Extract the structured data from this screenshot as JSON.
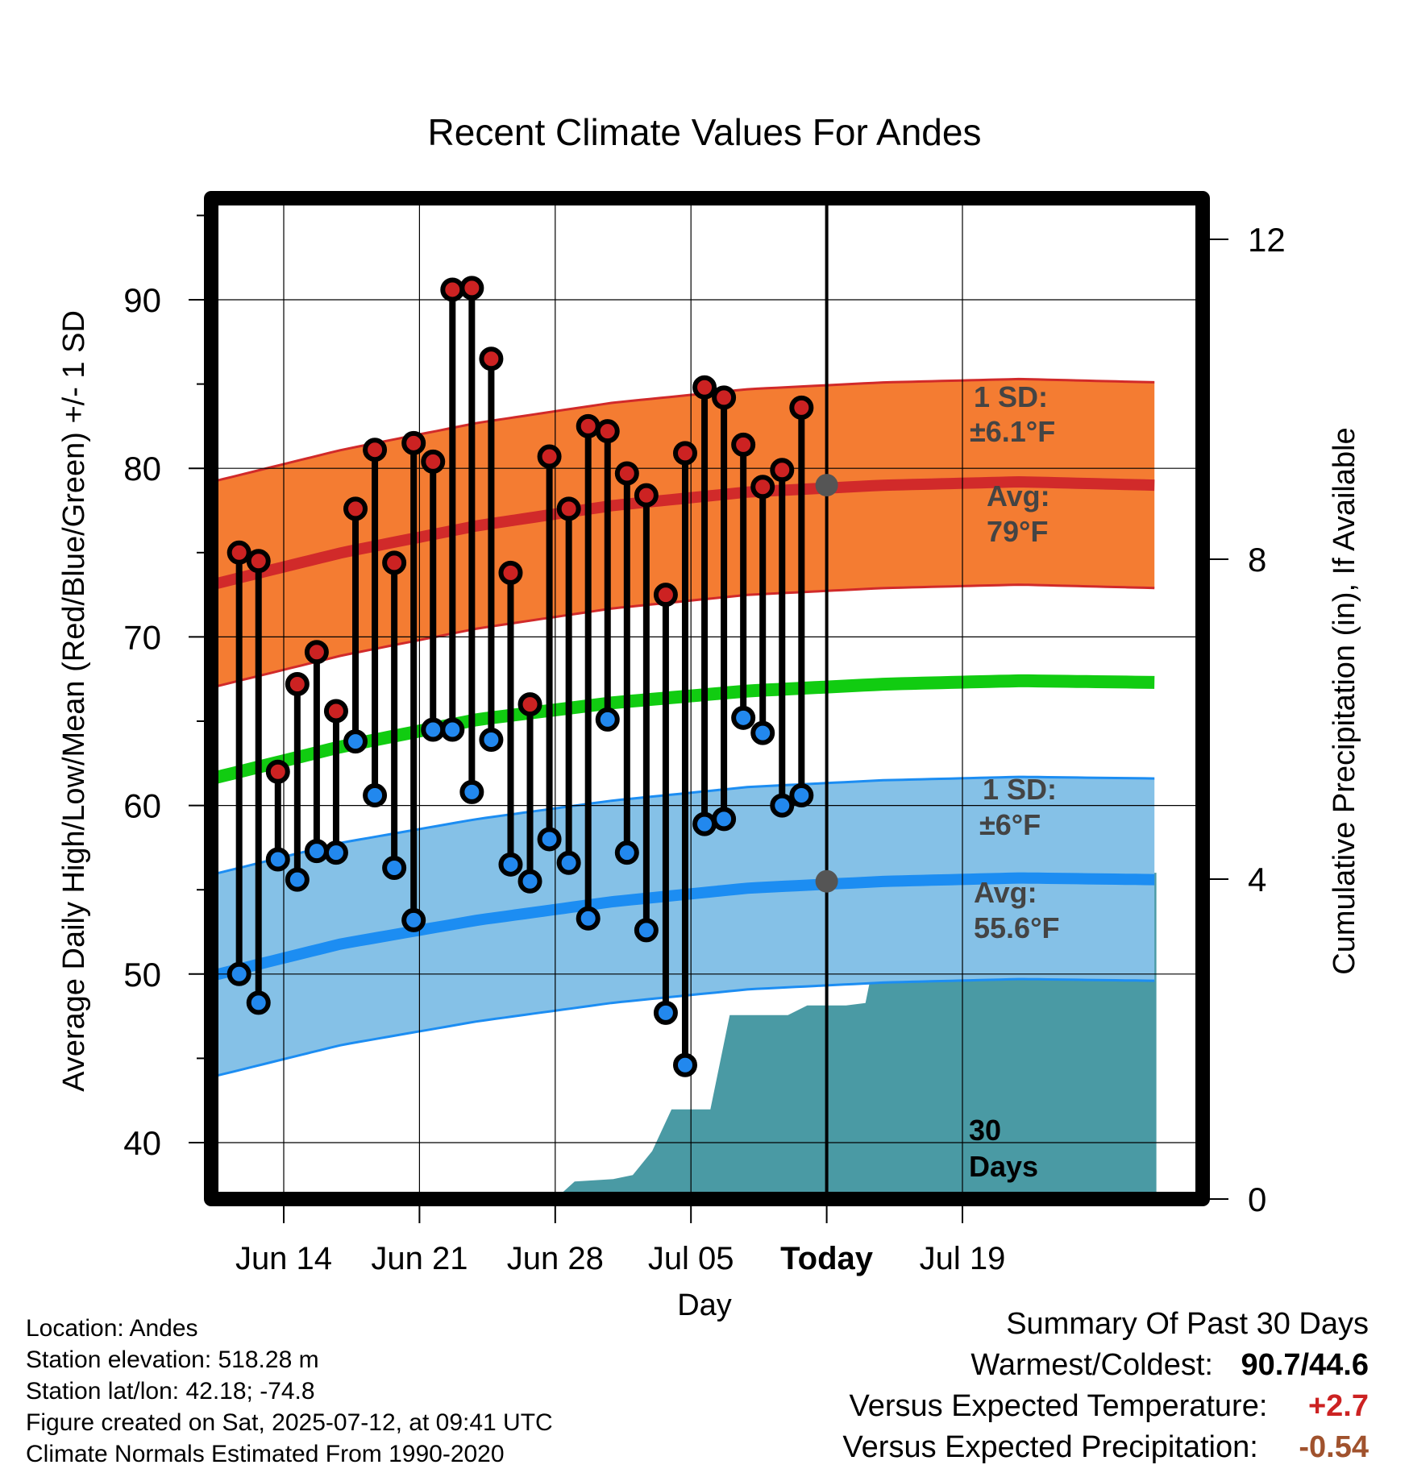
{
  "chart_data": {
    "type": "line",
    "title": "Recent Climate Values For Andes",
    "xlabel": "Day",
    "ylabel": "Average Daily High/Low/Mean (Red/Blue/Green) +/- 1 SD",
    "y2label": "Cumulative Precipitation (in), If Available",
    "ylim": [
      36.5,
      96
    ],
    "y2lim": [
      0,
      20
    ],
    "y_ticks": [
      40,
      50,
      60,
      70,
      80,
      90
    ],
    "y2_ticks": [
      0,
      4,
      8,
      12
    ],
    "xlim": [
      -10.5,
      28.5
    ],
    "x_ticks": [
      {
        "day": 0,
        "label": "Jun 14"
      },
      {
        "day": 7,
        "label": "Jun 21"
      },
      {
        "day": 14,
        "label": "Jun 28"
      },
      {
        "day": 21,
        "label": "Jul 05"
      },
      {
        "day": 28,
        "label": "Today"
      },
      {
        "day": 35,
        "label": "Jul 19"
      }
    ],
    "today_label": "30 Days",
    "observed": {
      "days": [
        12,
        13,
        14,
        15,
        16,
        17,
        18,
        19,
        20,
        21,
        22,
        23,
        24,
        25,
        26,
        27,
        28,
        29,
        30,
        31,
        32,
        33,
        34,
        35,
        36,
        37,
        38,
        39,
        40,
        41
      ],
      "high": [
        75.0,
        74.5,
        62.0,
        67.2,
        69.1,
        65.6,
        77.6,
        81.1,
        74.4,
        81.5,
        80.4,
        90.6,
        90.7,
        86.5,
        73.8,
        66.0,
        80.7,
        77.6,
        82.5,
        82.2,
        79.7,
        78.4,
        72.5,
        80.9,
        84.8,
        84.2,
        81.4,
        78.9,
        79.9,
        83.6
      ],
      "low": [
        50.0,
        48.3,
        56.8,
        55.6,
        57.3,
        57.2,
        63.8,
        60.6,
        56.3,
        53.2,
        64.5,
        64.5,
        60.8,
        63.9,
        56.5,
        55.5,
        58.0,
        56.6,
        53.3,
        65.1,
        57.2,
        52.6,
        47.7,
        44.6,
        58.9,
        59.2,
        65.2,
        64.3,
        60.0,
        60.6
      ]
    },
    "normals": {
      "days": [
        -3,
        3,
        10,
        17,
        24,
        31,
        38,
        45
      ],
      "high_avg": [
        73.3,
        75.0,
        76.6,
        77.8,
        78.6,
        79.0,
        79.2,
        79.0
      ],
      "high_sd": 6.1,
      "low_avg": [
        50.1,
        51.8,
        53.2,
        54.3,
        55.1,
        55.5,
        55.7,
        55.6
      ],
      "low_sd": 6,
      "mean_avg": [
        61.8,
        63.5,
        65.1,
        66.1,
        66.8,
        67.2,
        67.4,
        67.3
      ]
    },
    "precip": {
      "days": [
        12,
        14,
        15,
        17,
        18,
        19,
        20,
        21,
        22,
        23,
        24,
        25,
        26,
        27,
        28,
        29,
        30,
        31,
        32,
        33,
        34,
        35,
        37,
        40,
        45
      ],
      "cum": [
        0,
        0,
        0.22,
        0.25,
        0.3,
        0.6,
        1.12,
        1.12,
        1.12,
        2.3,
        2.3,
        2.3,
        2.3,
        2.42,
        2.42,
        2.42,
        2.45,
        3.65,
        3.65,
        4.0,
        4.02,
        4.02,
        4.05,
        4.08,
        4.08
      ]
    },
    "annotations": {
      "high_sd_label": "1 SD:",
      "high_sd_value": "±6.1°F",
      "high_avg_label": "Avg:",
      "high_avg_value": "79°F",
      "low_sd_label": "1 SD:",
      "low_sd_value": "±6°F",
      "low_avg_label": "Avg:",
      "low_avg_value": "55.6°F"
    },
    "colors": {
      "high_band": "#f47c32",
      "high_line": "#d12a2a",
      "low_band": "#85c1e7",
      "low_line": "#1c8df2",
      "mean_line": "#11cc11",
      "precip": "#4a9aa4",
      "high_marker": "#cc2222",
      "low_marker": "#2288ee",
      "annotation": "#444444"
    }
  },
  "station_info": {
    "location": "Location: Andes",
    "elevation": "Station elevation: 518.28 m",
    "latlon": "Station lat/lon: 42.18; -74.8",
    "created": "Figure created on Sat, 2025-07-12, at 09:41 UTC",
    "normals": "Climate Normals Estimated From 1990-2020"
  },
  "summary": {
    "title": "Summary Of Past 30 Days",
    "warm_cold_label": "Warmest/Coldest:",
    "warm_cold_value": "90.7/44.6",
    "temp_label": "Versus Expected Temperature:",
    "temp_value": "+2.7",
    "temp_color": "#cc2222",
    "precip_label": "Versus Expected Precipitation:",
    "precip_value": "-0.54",
    "precip_color": "#a0522d"
  }
}
